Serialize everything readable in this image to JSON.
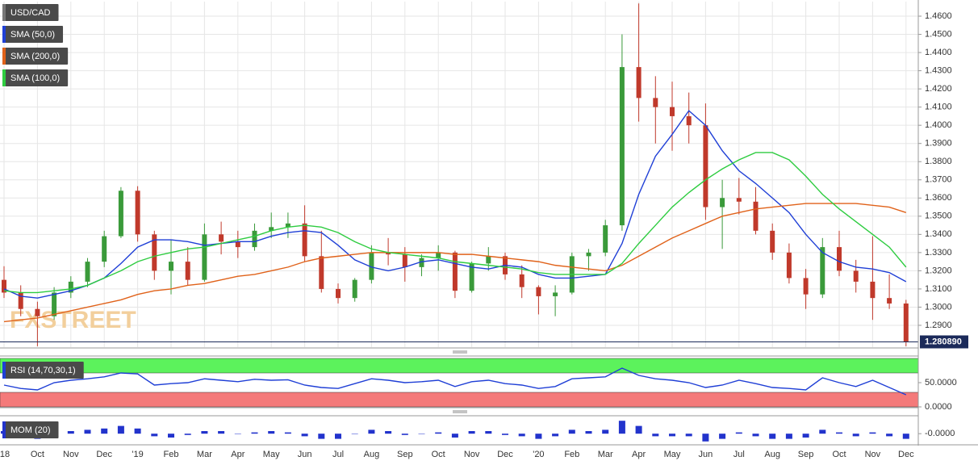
{
  "chart_data": [
    {
      "type": "candlestick",
      "watermark": "FXSTREET",
      "categories": [
        "'18",
        null,
        "Oct",
        null,
        "Nov",
        null,
        "Dec",
        null,
        "'19",
        null,
        "Feb",
        null,
        "Mar",
        null,
        "Apr",
        null,
        "May",
        null,
        "Jun",
        null,
        "Jul",
        null,
        "Aug",
        null,
        "Sep",
        null,
        "Oct",
        null,
        "Nov",
        null,
        "Dec",
        null,
        "'20",
        null,
        "Feb",
        null,
        "Mar",
        null,
        "Apr",
        null,
        "May",
        null,
        "Jun",
        null,
        "Jul",
        null,
        "Aug",
        null,
        "Sep",
        null,
        "Oct",
        null,
        "Nov",
        null,
        "Dec"
      ],
      "up_color": "#3a9a3a",
      "down_color": "#c0392b",
      "series": [
        {
          "name": "USD/CAD",
          "type": "candlestick",
          "color": "#777777",
          "open": [
            1.315,
            1.308,
            1.299,
            1.295,
            1.308,
            1.314,
            1.325,
            1.339,
            1.364,
            1.34,
            1.32,
            1.325,
            1.315,
            1.34,
            1.336,
            1.333,
            1.342,
            1.344,
            1.346,
            1.328,
            1.31,
            1.305,
            1.315,
            1.33,
            1.329,
            1.322,
            1.327,
            1.33,
            1.309,
            1.324,
            1.328,
            1.318,
            1.311,
            1.306,
            1.308,
            1.328,
            1.33,
            1.345,
            1.432,
            1.415,
            1.41,
            1.405,
            1.4,
            1.355,
            1.36,
            1.358,
            1.342,
            1.33,
            1.316,
            1.307,
            1.333,
            1.32,
            1.314,
            1.305,
            1.302
          ],
          "high": [
            1.3225,
            1.312,
            1.303,
            1.311,
            1.317,
            1.327,
            1.342,
            1.366,
            1.3665,
            1.342,
            1.337,
            1.333,
            1.346,
            1.347,
            1.342,
            1.346,
            1.352,
            1.352,
            1.356,
            1.342,
            1.313,
            1.316,
            1.334,
            1.338,
            1.333,
            1.329,
            1.334,
            1.331,
            1.325,
            1.333,
            1.33,
            1.323,
            1.312,
            1.312,
            1.33,
            1.332,
            1.348,
            1.45,
            1.467,
            1.427,
            1.424,
            1.418,
            1.412,
            1.37,
            1.371,
            1.366,
            1.346,
            1.335,
            1.321,
            1.338,
            1.342,
            1.326,
            1.339,
            1.318,
            1.304
          ],
          "low": [
            1.305,
            1.295,
            1.2785,
            1.293,
            1.305,
            1.311,
            1.322,
            1.338,
            1.336,
            1.315,
            1.307,
            1.312,
            1.314,
            1.329,
            1.327,
            1.331,
            1.338,
            1.338,
            1.325,
            1.308,
            1.302,
            1.303,
            1.313,
            1.323,
            1.314,
            1.317,
            1.32,
            1.305,
            1.308,
            1.32,
            1.315,
            1.305,
            1.296,
            1.295,
            1.307,
            1.32,
            1.328,
            1.342,
            1.402,
            1.39,
            1.386,
            1.39,
            1.348,
            1.332,
            1.351,
            1.34,
            1.326,
            1.313,
            1.299,
            1.305,
            1.317,
            1.308,
            1.293,
            1.299,
            1.2785
          ],
          "close": [
            1.308,
            1.299,
            1.295,
            1.308,
            1.314,
            1.325,
            1.339,
            1.364,
            1.34,
            1.32,
            1.325,
            1.315,
            1.34,
            1.336,
            1.333,
            1.342,
            1.344,
            1.346,
            1.328,
            1.31,
            1.305,
            1.315,
            1.33,
            1.329,
            1.322,
            1.327,
            1.33,
            1.309,
            1.324,
            1.328,
            1.318,
            1.311,
            1.306,
            1.308,
            1.328,
            1.33,
            1.345,
            1.432,
            1.415,
            1.41,
            1.405,
            1.4,
            1.355,
            1.36,
            1.358,
            1.342,
            1.33,
            1.316,
            1.307,
            1.333,
            1.32,
            1.314,
            1.305,
            1.302,
            1.2809
          ]
        },
        {
          "name": "SMA (50,0)",
          "type": "line",
          "color": "#1f3fd6",
          "values": [
            1.31,
            1.306,
            1.305,
            1.307,
            1.309,
            1.312,
            1.316,
            1.324,
            1.333,
            1.337,
            1.337,
            1.336,
            1.334,
            1.335,
            1.336,
            1.336,
            1.339,
            1.341,
            1.342,
            1.341,
            1.334,
            1.326,
            1.322,
            1.32,
            1.322,
            1.325,
            1.326,
            1.324,
            1.322,
            1.321,
            1.323,
            1.322,
            1.318,
            1.316,
            1.316,
            1.317,
            1.318,
            1.335,
            1.362,
            1.383,
            1.395,
            1.408,
            1.4,
            1.386,
            1.375,
            1.368,
            1.36,
            1.352,
            1.34,
            1.33,
            1.325,
            1.322,
            1.321,
            1.319,
            1.314
          ]
        },
        {
          "name": "SMA (200,0)",
          "type": "line",
          "color": "#e0621a",
          "values": [
            1.292,
            1.293,
            1.294,
            1.296,
            1.298,
            1.3,
            1.302,
            1.304,
            1.307,
            1.309,
            1.31,
            1.312,
            1.313,
            1.315,
            1.317,
            1.318,
            1.32,
            1.322,
            1.325,
            1.327,
            1.328,
            1.329,
            1.33,
            1.33,
            1.33,
            1.33,
            1.33,
            1.329,
            1.329,
            1.328,
            1.327,
            1.326,
            1.325,
            1.323,
            1.322,
            1.321,
            1.32,
            1.323,
            1.328,
            1.333,
            1.338,
            1.342,
            1.346,
            1.35,
            1.352,
            1.354,
            1.355,
            1.356,
            1.357,
            1.357,
            1.357,
            1.357,
            1.356,
            1.355,
            1.352
          ]
        },
        {
          "name": "SMA (100,0)",
          "type": "line",
          "color": "#2ecc40",
          "values": [
            1.309,
            1.308,
            1.308,
            1.309,
            1.31,
            1.312,
            1.316,
            1.32,
            1.325,
            1.328,
            1.33,
            1.332,
            1.333,
            1.335,
            1.337,
            1.339,
            1.342,
            1.344,
            1.345,
            1.344,
            1.341,
            1.336,
            1.332,
            1.33,
            1.329,
            1.328,
            1.327,
            1.325,
            1.324,
            1.323,
            1.322,
            1.321,
            1.319,
            1.318,
            1.318,
            1.318,
            1.318,
            1.324,
            1.335,
            1.345,
            1.355,
            1.363,
            1.37,
            1.376,
            1.381,
            1.385,
            1.385,
            1.381,
            1.372,
            1.362,
            1.354,
            1.347,
            1.34,
            1.333,
            1.322
          ]
        }
      ],
      "last": {
        "value": 1.28089,
        "label": "1.280890",
        "color": "#1b2a5a"
      },
      "ylim": [
        1.278,
        1.468
      ],
      "yticks": [
        {
          "value": 1.29,
          "label": "1.2900"
        },
        {
          "value": 1.3,
          "label": "1.3000"
        },
        {
          "value": 1.31,
          "label": "1.3100"
        },
        {
          "value": 1.32,
          "label": "1.3200"
        },
        {
          "value": 1.33,
          "label": "1.3300"
        },
        {
          "value": 1.34,
          "label": "1.3400"
        },
        {
          "value": 1.35,
          "label": "1.3500"
        },
        {
          "value": 1.36,
          "label": "1.3600"
        },
        {
          "value": 1.37,
          "label": "1.3700"
        },
        {
          "value": 1.38,
          "label": "1.3800"
        },
        {
          "value": 1.39,
          "label": "1.3900"
        },
        {
          "value": 1.4,
          "label": "1.4000"
        },
        {
          "value": 1.41,
          "label": "1.4100"
        },
        {
          "value": 1.42,
          "label": "1.4200"
        },
        {
          "value": 1.43,
          "label": "1.4300"
        },
        {
          "value": 1.44,
          "label": "1.4400"
        },
        {
          "value": 1.45,
          "label": "1.4500"
        },
        {
          "value": 1.46,
          "label": "1.4600"
        }
      ],
      "grid": true
    },
    {
      "type": "line",
      "series": [
        {
          "name": "RSI (14,70,30,1)",
          "color": "#1f3fd6",
          "values": [
            45,
            38,
            35,
            50,
            55,
            58,
            62,
            70,
            68,
            45,
            48,
            50,
            58,
            55,
            52,
            57,
            55,
            56,
            45,
            40,
            38,
            48,
            58,
            55,
            50,
            52,
            55,
            42,
            52,
            55,
            48,
            45,
            38,
            42,
            58,
            60,
            62,
            80,
            65,
            58,
            55,
            50,
            40,
            45,
            55,
            48,
            40,
            38,
            35,
            60,
            50,
            42,
            55,
            40,
            25
          ]
        }
      ],
      "bands": [
        {
          "from": 70,
          "to": 100,
          "color": "#5cf25c"
        },
        {
          "from": 0,
          "to": 30,
          "color": "#f47a7a"
        }
      ],
      "ylim": [
        0,
        100
      ],
      "yticks": [
        {
          "value": 0,
          "label": "0.0000"
        },
        {
          "value": 50,
          "label": "50.0000"
        }
      ]
    },
    {
      "type": "bar",
      "series": [
        {
          "name": "MOM (20)",
          "color": "#2233cc",
          "values": [
            0.01,
            -0.01,
            -0.02,
            0.005,
            0.01,
            0.015,
            0.02,
            0.03,
            0.02,
            -0.01,
            -0.015,
            -0.005,
            0.01,
            0.01,
            0,
            0.005,
            0.01,
            0.005,
            -0.01,
            -0.02,
            -0.02,
            0,
            0.015,
            0.01,
            -0.005,
            0,
            0.005,
            -0.015,
            0.01,
            0.01,
            -0.005,
            -0.01,
            -0.02,
            -0.01,
            0.015,
            0.01,
            0.015,
            0.05,
            0.03,
            -0.01,
            -0.01,
            -0.01,
            -0.03,
            -0.02,
            0.005,
            -0.01,
            -0.02,
            -0.02,
            -0.015,
            0.015,
            0.005,
            -0.01,
            0.005,
            -0.01,
            -0.02
          ]
        }
      ],
      "ylim": [
        -0.04,
        0.06
      ],
      "yticks": [
        {
          "value": 0,
          "label": "-0.0000"
        }
      ]
    }
  ]
}
